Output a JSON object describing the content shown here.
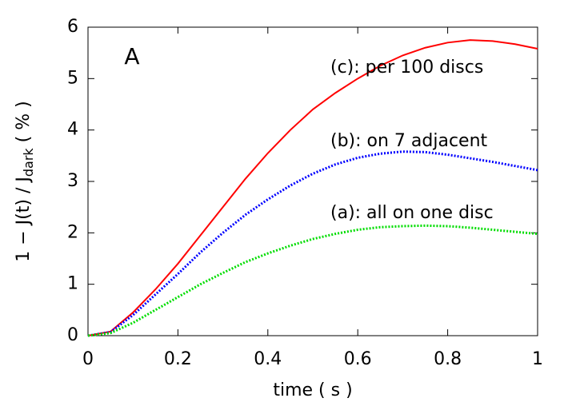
{
  "chart_data": {
    "type": "line",
    "xlabel": "time  ( s )",
    "ylabel": {
      "text": "1 − J(t) / J",
      "subscript": "dark",
      "suffix": "  ( % )"
    },
    "annotation": "A",
    "x": [
      0,
      0.05,
      0.1,
      0.15,
      0.2,
      0.25,
      0.3,
      0.35,
      0.4,
      0.45,
      0.5,
      0.55,
      0.6,
      0.65,
      0.7,
      0.75,
      0.8,
      0.85,
      0.9,
      0.95,
      1
    ],
    "series": [
      {
        "name": "(c): per 100 discs",
        "color": "#ff0000",
        "dash": "none",
        "values": [
          0,
          0.08,
          0.45,
          0.9,
          1.4,
          1.95,
          2.5,
          3.05,
          3.55,
          4.0,
          4.4,
          4.72,
          5.0,
          5.25,
          5.45,
          5.6,
          5.7,
          5.75,
          5.73,
          5.67,
          5.58
        ]
      },
      {
        "name": "(b): on 7 adjacent",
        "color": "#0000ff",
        "dash": "2 2",
        "values": [
          0,
          0.07,
          0.4,
          0.8,
          1.2,
          1.62,
          2.0,
          2.35,
          2.65,
          2.92,
          3.15,
          3.33,
          3.46,
          3.54,
          3.58,
          3.57,
          3.52,
          3.45,
          3.38,
          3.3,
          3.22
        ]
      },
      {
        "name": "(a): all on one disc",
        "color": "#00dd00",
        "dash": "2 2",
        "values": [
          0,
          0.05,
          0.25,
          0.5,
          0.75,
          1.0,
          1.22,
          1.43,
          1.6,
          1.75,
          1.88,
          1.98,
          2.06,
          2.11,
          2.13,
          2.14,
          2.13,
          2.1,
          2.06,
          2.02,
          1.98
        ]
      }
    ],
    "xlim": [
      0,
      1
    ],
    "xticks": [
      0,
      0.2,
      0.4,
      0.6,
      0.8,
      1
    ],
    "ylim": [
      0,
      6
    ],
    "yticks": [
      0,
      1,
      2,
      3,
      4,
      5,
      6
    ]
  }
}
